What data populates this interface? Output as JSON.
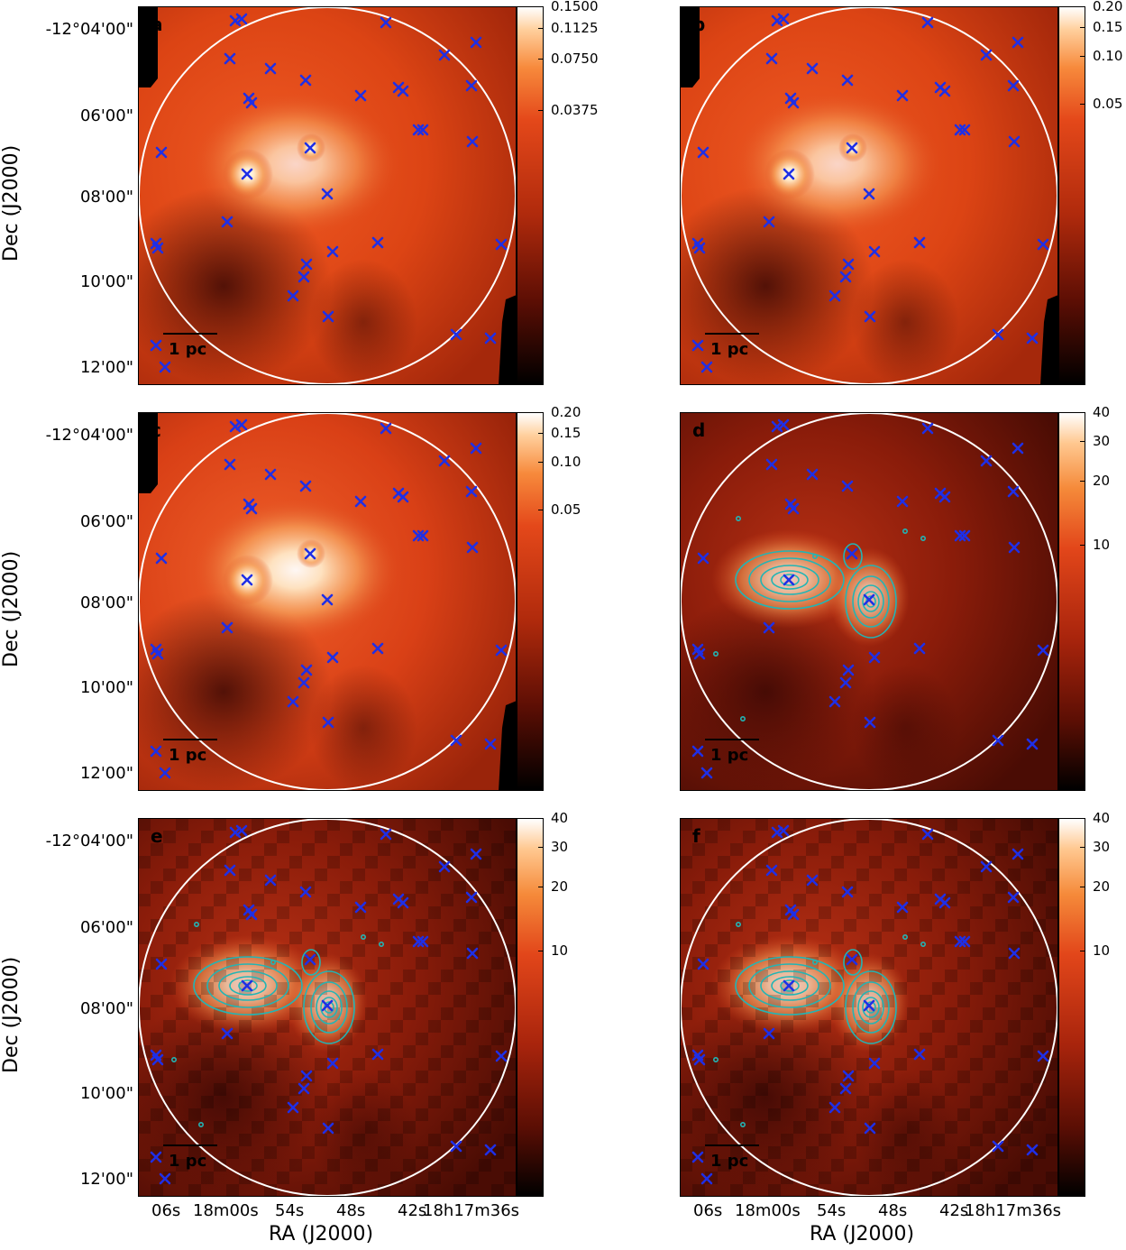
{
  "panels": [
    {
      "letter": "a",
      "ticks": [
        "0.1500",
        "0.1125",
        "0.0750",
        "0.0375"
      ],
      "contours": false,
      "pixelated": false,
      "style": "mid"
    },
    {
      "letter": "b",
      "ticks": [
        "0.20",
        "0.15",
        "0.10",
        "0.05"
      ],
      "contours": false,
      "pixelated": false,
      "style": "mid"
    },
    {
      "letter": "c",
      "ticks": [
        "0.20",
        "0.15",
        "0.10",
        "0.05"
      ],
      "contours": false,
      "pixelated": false,
      "style": "bright"
    },
    {
      "letter": "d",
      "ticks": [
        "40",
        "30",
        "20",
        "10"
      ],
      "contours": true,
      "pixelated": false,
      "style": "dark"
    },
    {
      "letter": "e",
      "ticks": [
        "40",
        "30",
        "20",
        "10"
      ],
      "contours": true,
      "pixelated": true,
      "style": "dark"
    },
    {
      "letter": "f",
      "ticks": [
        "40",
        "30",
        "20",
        "10"
      ],
      "contours": true,
      "pixelated": true,
      "style": "dark"
    }
  ],
  "dec_labels": [
    "-12°04'00\"",
    "06'00\"",
    "08'00\"",
    "10'00\"",
    "12'00\""
  ],
  "ra_labels": [
    "06s",
    "18m00s",
    "54s",
    "48s",
    "42s",
    "18h17m36s"
  ],
  "y_axis_title": "Dec (J2000)",
  "x_axis_title": "RA (J2000)",
  "scalebar_label": "1 pc",
  "colors": {
    "marker": "#1f2fe6",
    "contour": "#22b5b5",
    "circle": "#ffffff"
  }
}
